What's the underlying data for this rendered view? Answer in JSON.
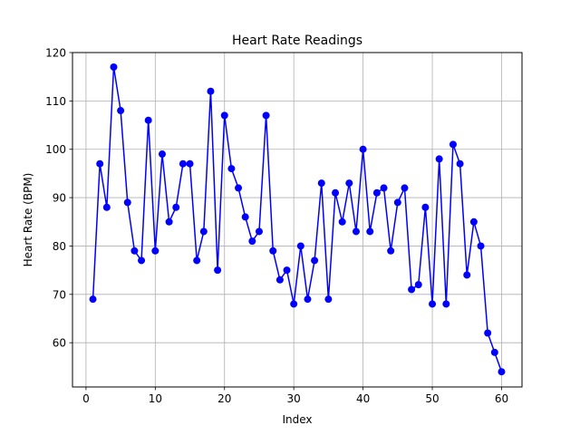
{
  "chart_data": {
    "type": "line",
    "title": "Heart Rate Readings",
    "xlabel": "Index",
    "ylabel": "Heart Rate (BPM)",
    "xlim": [
      -1.95,
      62.95
    ],
    "ylim": [
      50.85,
      120
    ],
    "xticks": [
      0,
      10,
      20,
      30,
      40,
      50,
      60
    ],
    "yticks": [
      60,
      70,
      80,
      90,
      100,
      110,
      120
    ],
    "grid": true,
    "series": [
      {
        "color": "#0000ff",
        "marker": "circle",
        "x": [
          1,
          2,
          3,
          4,
          5,
          6,
          7,
          8,
          9,
          10,
          11,
          12,
          13,
          14,
          15,
          16,
          17,
          18,
          19,
          20,
          21,
          22,
          23,
          24,
          25,
          26,
          27,
          28,
          29,
          30,
          31,
          32,
          33,
          34,
          35,
          36,
          37,
          38,
          39,
          40,
          41,
          42,
          43,
          44,
          45,
          46,
          47,
          48,
          49,
          50,
          51,
          52,
          53,
          54,
          55,
          56,
          57,
          58,
          59,
          60
        ],
        "values": [
          69,
          97,
          88,
          117,
          108,
          89,
          79,
          77,
          106,
          79,
          99,
          85,
          88,
          97,
          97,
          77,
          83,
          112,
          75,
          107,
          96,
          92,
          86,
          81,
          83,
          107,
          79,
          73,
          75,
          68,
          80,
          69,
          77,
          93,
          69,
          91,
          85,
          93,
          83,
          100,
          83,
          91,
          92,
          79,
          89,
          92,
          71,
          72,
          88,
          68,
          98,
          68,
          101,
          97,
          74,
          85,
          80,
          62,
          58,
          54
        ]
      }
    ]
  }
}
